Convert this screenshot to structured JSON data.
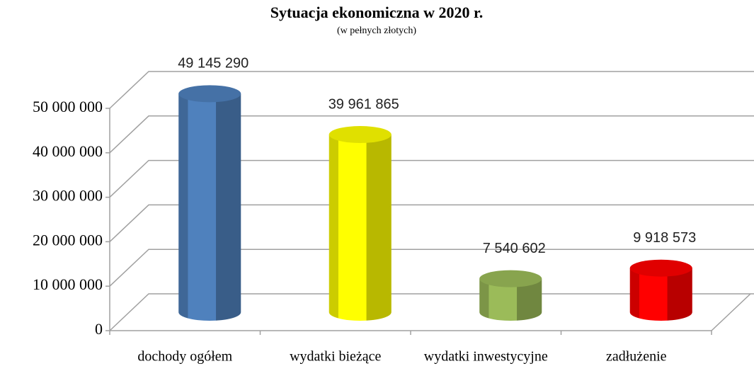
{
  "chart_data": {
    "type": "bar3d",
    "title": "Sytuacja ekonomiczna w 2020 r.",
    "subtitle": "(w pełnych złotych)",
    "categories": [
      "dochody ogółem",
      "wydatki bieżące",
      "wydatki inwestycyjne",
      "zadłużenie"
    ],
    "values": [
      49145290,
      39961865,
      7540602,
      9918573
    ],
    "value_labels": [
      "49 145 290",
      "39 961 865",
      "7 540 602",
      "9 918 573"
    ],
    "colors": [
      "#4f81bd",
      "#ffff00",
      "#9bbb59",
      "#ff0000"
    ],
    "ylim": [
      0,
      50000000
    ],
    "yticks": [
      0,
      {
        "value": 10000000,
        "label": "10 000 000"
      },
      {
        "value": 20000000,
        "label": "20 000 000"
      },
      {
        "value": 30000000,
        "label": "30 000 000"
      },
      {
        "value": 40000000,
        "label": "40 000 000"
      },
      {
        "value": 50000000,
        "label": "50 000 000"
      }
    ],
    "grid": true
  }
}
